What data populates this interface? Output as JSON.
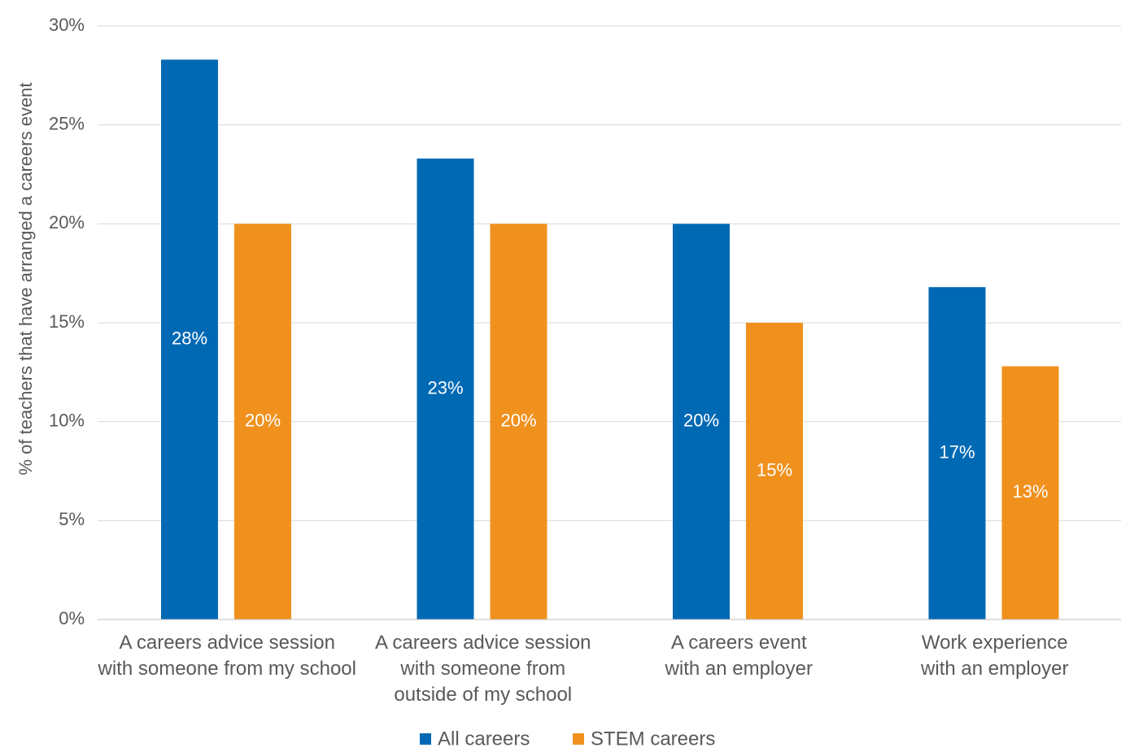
{
  "chart_data": {
    "type": "bar",
    "ylabel": "% of teachers that have arranged a careers event",
    "ylim": [
      0,
      30
    ],
    "yticks": [
      "0%",
      "5%",
      "10%",
      "15%",
      "20%",
      "25%",
      "30%"
    ],
    "ytick_values": [
      0,
      5,
      10,
      15,
      20,
      25,
      30
    ],
    "grid": true,
    "legend_position": "bottom",
    "categories": [
      [
        "A careers advice session",
        "with someone from my school"
      ],
      [
        "A careers advice session",
        "with someone from",
        "outside of my school"
      ],
      [
        "A careers event",
        "with an employer"
      ],
      [
        "Work experience",
        "with an employer"
      ]
    ],
    "series": [
      {
        "name": "All careers",
        "color": "#0069b4",
        "values": [
          28.3,
          23.3,
          20.0,
          16.8
        ],
        "labels": [
          "28%",
          "23%",
          "20%",
          "17%"
        ]
      },
      {
        "name": "STEM careers",
        "color": "#f0911e",
        "values": [
          20.0,
          20.0,
          15.0,
          12.8
        ],
        "labels": [
          "20%",
          "20%",
          "15%",
          "13%"
        ]
      }
    ]
  }
}
